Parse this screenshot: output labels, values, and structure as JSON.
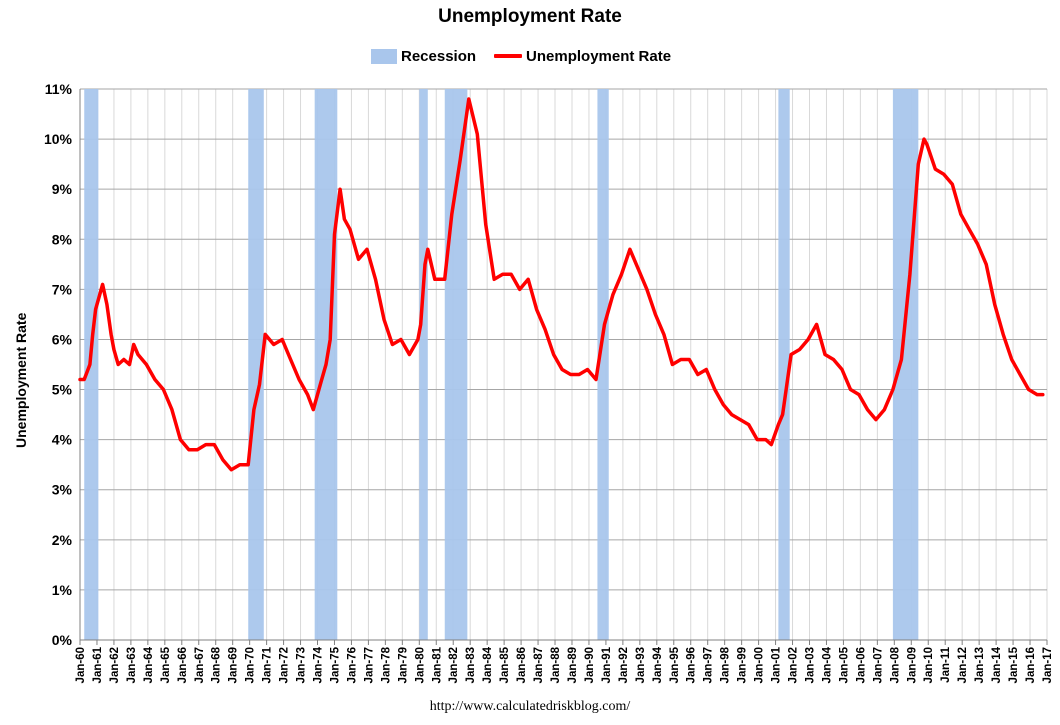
{
  "title": "Unemployment Rate",
  "source": "http://www.calculatedriskblog.com/",
  "legend": [
    {
      "label": "Recession",
      "color": "#a9c6ec"
    },
    {
      "label": "Unemployment Rate",
      "color": "#ff0000"
    }
  ],
  "chart_data": {
    "type": "line",
    "title": "Unemployment Rate",
    "xlabel": "",
    "ylabel": "Unemployment Rate",
    "ylim": [
      0,
      11
    ],
    "y_ticks": [
      "0%",
      "1%",
      "2%",
      "3%",
      "4%",
      "5%",
      "6%",
      "7%",
      "8%",
      "9%",
      "10%",
      "11%"
    ],
    "x_range": [
      "Jan-60",
      "Jan-17"
    ],
    "x_ticks": [
      "Jan-60",
      "Jan-61",
      "Jan-62",
      "Jan-63",
      "Jan-64",
      "Jan-65",
      "Jan-66",
      "Jan-67",
      "Jan-68",
      "Jan-69",
      "Jan-70",
      "Jan-71",
      "Jan-72",
      "Jan-73",
      "Jan-74",
      "Jan-75",
      "Jan-76",
      "Jan-77",
      "Jan-78",
      "Jan-79",
      "Jan-80",
      "Jan-81",
      "Jan-82",
      "Jan-83",
      "Jan-84",
      "Jan-85",
      "Jan-86",
      "Jan-87",
      "Jan-88",
      "Jan-89",
      "Jan-90",
      "Jan-91",
      "Jan-92",
      "Jan-93",
      "Jan-94",
      "Jan-95",
      "Jan-96",
      "Jan-97",
      "Jan-98",
      "Jan-99",
      "Jan-00",
      "Jan-01",
      "Jan-02",
      "Jan-03",
      "Jan-04",
      "Jan-05",
      "Jan-06",
      "Jan-07",
      "Jan-08",
      "Jan-09",
      "Jan-10",
      "Jan-11",
      "Jan-12",
      "Jan-13",
      "Jan-14",
      "Jan-15",
      "Jan-16",
      "Jan-17"
    ],
    "grid": true,
    "legend_position": "top-center",
    "recessions": [
      {
        "start": "Apr-60",
        "end": "Feb-61"
      },
      {
        "start": "Dec-69",
        "end": "Nov-70"
      },
      {
        "start": "Nov-73",
        "end": "Mar-75"
      },
      {
        "start": "Jan-80",
        "end": "Jul-80"
      },
      {
        "start": "Jul-81",
        "end": "Nov-82"
      },
      {
        "start": "Jul-90",
        "end": "Mar-91"
      },
      {
        "start": "Mar-01",
        "end": "Nov-01"
      },
      {
        "start": "Dec-07",
        "end": "Jun-09"
      }
    ],
    "series": [
      {
        "name": "Unemployment Rate",
        "color": "#ff0000",
        "points": [
          [
            "Jan-60",
            5.2
          ],
          [
            "Apr-60",
            5.2
          ],
          [
            "Aug-60",
            5.5
          ],
          [
            "Oct-60",
            6.1
          ],
          [
            "Dec-60",
            6.6
          ],
          [
            "May-61",
            7.1
          ],
          [
            "Aug-61",
            6.7
          ],
          [
            "Nov-61",
            6.1
          ],
          [
            "Jan-62",
            5.8
          ],
          [
            "Apr-62",
            5.5
          ],
          [
            "Aug-62",
            5.6
          ],
          [
            "Dec-62",
            5.5
          ],
          [
            "Mar-63",
            5.9
          ],
          [
            "Jun-63",
            5.7
          ],
          [
            "Dec-63",
            5.5
          ],
          [
            "Jun-64",
            5.2
          ],
          [
            "Dec-64",
            5.0
          ],
          [
            "Jun-65",
            4.6
          ],
          [
            "Dec-65",
            4.0
          ],
          [
            "Jun-66",
            3.8
          ],
          [
            "Dec-66",
            3.8
          ],
          [
            "Jun-67",
            3.9
          ],
          [
            "Dec-67",
            3.9
          ],
          [
            "Jun-68",
            3.6
          ],
          [
            "Dec-68",
            3.4
          ],
          [
            "Jun-69",
            3.5
          ],
          [
            "Dec-69",
            3.5
          ],
          [
            "Apr-70",
            4.6
          ],
          [
            "Aug-70",
            5.1
          ],
          [
            "Dec-70",
            6.1
          ],
          [
            "Jun-71",
            5.9
          ],
          [
            "Dec-71",
            6.0
          ],
          [
            "Jun-72",
            5.6
          ],
          [
            "Dec-72",
            5.2
          ],
          [
            "Jun-73",
            4.9
          ],
          [
            "Oct-73",
            4.6
          ],
          [
            "Mar-74",
            5.1
          ],
          [
            "Jul-74",
            5.5
          ],
          [
            "Oct-74",
            6.0
          ],
          [
            "Jan-75",
            8.1
          ],
          [
            "May-75",
            9.0
          ],
          [
            "Aug-75",
            8.4
          ],
          [
            "Dec-75",
            8.2
          ],
          [
            "Jun-76",
            7.6
          ],
          [
            "Dec-76",
            7.8
          ],
          [
            "Jun-77",
            7.2
          ],
          [
            "Dec-77",
            6.4
          ],
          [
            "Jun-78",
            5.9
          ],
          [
            "Dec-78",
            6.0
          ],
          [
            "Jun-79",
            5.7
          ],
          [
            "Dec-79",
            6.0
          ],
          [
            "Feb-80",
            6.3
          ],
          [
            "May-80",
            7.5
          ],
          [
            "Jul-80",
            7.8
          ],
          [
            "Dec-80",
            7.2
          ],
          [
            "Jul-81",
            7.2
          ],
          [
            "Dec-81",
            8.5
          ],
          [
            "Jun-82",
            9.6
          ],
          [
            "Dec-82",
            10.8
          ],
          [
            "Jun-83",
            10.1
          ],
          [
            "Dec-83",
            8.3
          ],
          [
            "Jun-84",
            7.2
          ],
          [
            "Dec-84",
            7.3
          ],
          [
            "Jun-85",
            7.3
          ],
          [
            "Dec-85",
            7.0
          ],
          [
            "Jun-86",
            7.2
          ],
          [
            "Dec-86",
            6.6
          ],
          [
            "Jun-87",
            6.2
          ],
          [
            "Dec-87",
            5.7
          ],
          [
            "Jun-88",
            5.4
          ],
          [
            "Dec-88",
            5.3
          ],
          [
            "Jun-89",
            5.3
          ],
          [
            "Dec-89",
            5.4
          ],
          [
            "Jun-90",
            5.2
          ],
          [
            "Dec-90",
            6.3
          ],
          [
            "Jun-91",
            6.9
          ],
          [
            "Dec-91",
            7.3
          ],
          [
            "Jun-92",
            7.8
          ],
          [
            "Dec-92",
            7.4
          ],
          [
            "Jun-93",
            7.0
          ],
          [
            "Dec-93",
            6.5
          ],
          [
            "Jun-94",
            6.1
          ],
          [
            "Dec-94",
            5.5
          ],
          [
            "Jun-95",
            5.6
          ],
          [
            "Dec-95",
            5.6
          ],
          [
            "Jun-96",
            5.3
          ],
          [
            "Dec-96",
            5.4
          ],
          [
            "Jun-97",
            5.0
          ],
          [
            "Dec-97",
            4.7
          ],
          [
            "Jun-98",
            4.5
          ],
          [
            "Dec-98",
            4.4
          ],
          [
            "Jun-99",
            4.3
          ],
          [
            "Dec-99",
            4.0
          ],
          [
            "Jun-00",
            4.0
          ],
          [
            "Oct-00",
            3.9
          ],
          [
            "Mar-01",
            4.3
          ],
          [
            "Jun-01",
            4.5
          ],
          [
            "Dec-01",
            5.7
          ],
          [
            "Jun-02",
            5.8
          ],
          [
            "Dec-02",
            6.0
          ],
          [
            "Jun-03",
            6.3
          ],
          [
            "Dec-03",
            5.7
          ],
          [
            "Jun-04",
            5.6
          ],
          [
            "Dec-04",
            5.4
          ],
          [
            "Jun-05",
            5.0
          ],
          [
            "Dec-05",
            4.9
          ],
          [
            "Jun-06",
            4.6
          ],
          [
            "Dec-06",
            4.4
          ],
          [
            "Jun-07",
            4.6
          ],
          [
            "Dec-07",
            5.0
          ],
          [
            "Jun-08",
            5.6
          ],
          [
            "Dec-08",
            7.3
          ],
          [
            "Jun-09",
            9.5
          ],
          [
            "Oct-09",
            10.0
          ],
          [
            "Dec-09",
            9.9
          ],
          [
            "Jun-10",
            9.4
          ],
          [
            "Dec-10",
            9.3
          ],
          [
            "Jun-11",
            9.1
          ],
          [
            "Dec-11",
            8.5
          ],
          [
            "Jun-12",
            8.2
          ],
          [
            "Dec-12",
            7.9
          ],
          [
            "Jun-13",
            7.5
          ],
          [
            "Dec-13",
            6.7
          ],
          [
            "Jun-14",
            6.1
          ],
          [
            "Dec-14",
            5.6
          ],
          [
            "Jun-15",
            5.3
          ],
          [
            "Dec-15",
            5.0
          ],
          [
            "Jun-16",
            4.9
          ],
          [
            "Oct-16",
            4.9
          ]
        ]
      }
    ]
  }
}
